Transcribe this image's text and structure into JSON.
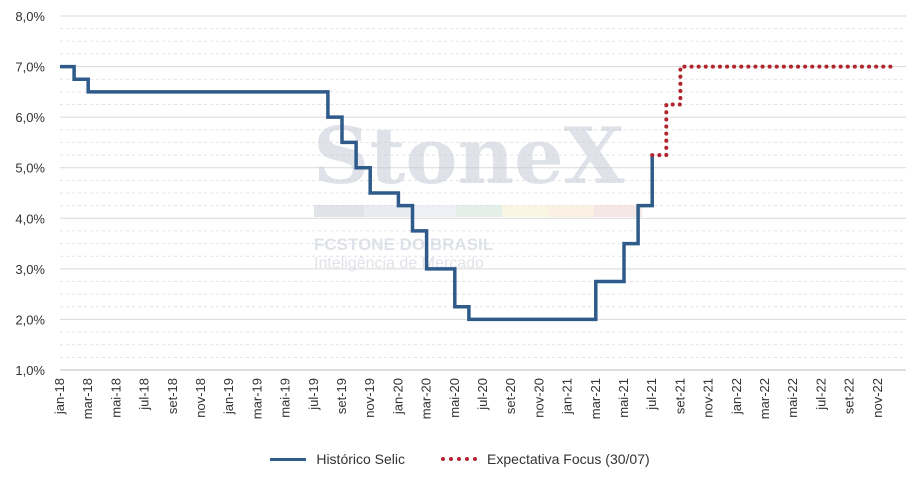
{
  "chart_data": {
    "type": "line",
    "y_ticks": [
      "1,0%",
      "2,0%",
      "3,0%",
      "4,0%",
      "5,0%",
      "6,0%",
      "7,0%",
      "8,0%"
    ],
    "ylim": [
      1.0,
      8.0
    ],
    "x_ticks": [
      "jan-18",
      "mar-18",
      "mai-18",
      "jul-18",
      "set-18",
      "nov-18",
      "jan-19",
      "mar-19",
      "mai-19",
      "jul-19",
      "set-19",
      "nov-19",
      "jan-20",
      "mar-20",
      "mai-20",
      "jul-20",
      "set-20",
      "nov-20",
      "jan-21",
      "mar-21",
      "mai-21",
      "jul-21",
      "set-21",
      "nov-21",
      "jan-22",
      "mar-22",
      "mai-22",
      "jul-22",
      "set-22",
      "nov-22"
    ],
    "grid": true,
    "legend_position": "bottom",
    "series": [
      {
        "name": "Histórico Selic",
        "color": "#2e5b8a",
        "style": "solid-step",
        "points": [
          [
            "jan-18",
            7.0
          ],
          [
            "fev-18",
            6.75
          ],
          [
            "mar-18",
            6.5
          ],
          [
            "jul-19",
            6.5
          ],
          [
            "ago-19",
            6.0
          ],
          [
            "set-19",
            5.5
          ],
          [
            "out-19",
            5.0
          ],
          [
            "nov-19",
            4.5
          ],
          [
            "jan-20",
            4.25
          ],
          [
            "fev-20",
            3.75
          ],
          [
            "mar-20",
            3.0
          ],
          [
            "mai-20",
            2.25
          ],
          [
            "jun-20",
            2.0
          ],
          [
            "fev-21",
            2.0
          ],
          [
            "mar-21",
            2.75
          ],
          [
            "mai-21",
            3.5
          ],
          [
            "jun-21",
            4.25
          ],
          [
            "jul-21",
            5.25
          ]
        ]
      },
      {
        "name": "Expectativa Focus (30/07)",
        "color": "#b0262e",
        "style": "dotted-step",
        "points": [
          [
            "jul-21",
            5.25
          ],
          [
            "ago-21",
            6.25
          ],
          [
            "set-21",
            6.5
          ],
          [
            "set-21",
            7.0
          ],
          [
            "dez-22",
            7.0
          ]
        ]
      }
    ]
  },
  "watermark": {
    "brand": "StoneX",
    "line1": "FCSTONE DO BRASIL",
    "line2": "Inteligência de Mercado",
    "color": "#c5ccd6"
  }
}
